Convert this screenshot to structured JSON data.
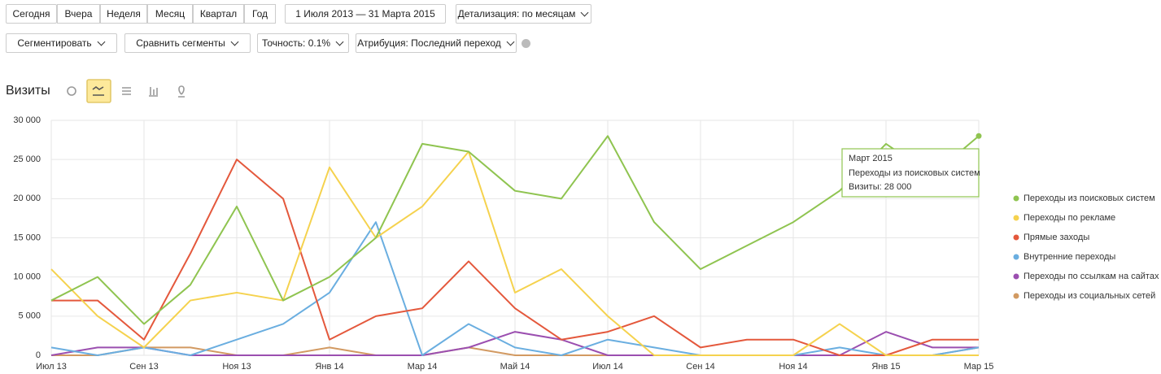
{
  "toolbar": {
    "periods": [
      "Сегодня",
      "Вчера",
      "Неделя",
      "Месяц",
      "Квартал",
      "Год"
    ],
    "date_range": "1 Июля 2013 — 31 Марта 2015",
    "detail": "Детализация: по месяцам",
    "segment": "Сегментировать",
    "compare": "Сравнить сегменты",
    "accuracy": "Точность: 0.1%",
    "attribution": "Атрибуция: Последний переход"
  },
  "tooltip": {
    "title": "Март 2015",
    "value_text": "Визиты: 28 000"
  },
  "chart_data": {
    "type": "line",
    "title": "Визиты",
    "categories": [
      "Июл 13",
      null,
      "Сен 13",
      null,
      "Ноя 13",
      null,
      "Янв 14",
      null,
      "Мар 14",
      null,
      "Май 14",
      null,
      "Июл 14",
      null,
      "Сен 14",
      null,
      "Ноя 14",
      null,
      "Янв 15",
      null,
      "Мар 15"
    ],
    "ylim": [
      0,
      30000
    ],
    "yticks": [
      0,
      {
        "value": 5000,
        "label": "5 000"
      },
      {
        "value": 10000,
        "label": "10 000"
      },
      {
        "value": 15000,
        "label": "15 000"
      },
      {
        "value": 20000,
        "label": "20 000"
      },
      {
        "value": 25000,
        "label": "25 000"
      },
      {
        "value": 30000,
        "label": "30 000"
      }
    ],
    "grid": true,
    "legend": "right",
    "series": [
      {
        "name": "Переходы из поисковых систем",
        "color": "#8fc450",
        "values": [
          7000,
          10000,
          4000,
          9000,
          19000,
          7000,
          10000,
          15000,
          27000,
          26000,
          21000,
          20000,
          28000,
          17000,
          11000,
          14000,
          17000,
          21000,
          27000,
          23000,
          28000
        ]
      },
      {
        "name": "Переходы по рекламе",
        "color": "#f5d24e",
        "values": [
          11000,
          5000,
          1000,
          7000,
          8000,
          7000,
          24000,
          15000,
          19000,
          26000,
          8000,
          11000,
          5000,
          0,
          0,
          0,
          0,
          4000,
          0,
          0,
          0
        ]
      },
      {
        "name": "Прямые заходы",
        "color": "#e4583c",
        "values": [
          7000,
          7000,
          2000,
          13000,
          25000,
          20000,
          2000,
          5000,
          6000,
          12000,
          6000,
          2000,
          3000,
          5000,
          1000,
          2000,
          2000,
          0,
          0,
          2000,
          2000
        ]
      },
      {
        "name": "Внутренние переходы",
        "color": "#6aaee0",
        "values": [
          1000,
          0,
          1000,
          0,
          2000,
          4000,
          8000,
          17000,
          0,
          4000,
          1000,
          0,
          2000,
          1000,
          0,
          0,
          0,
          1000,
          0,
          0,
          1000
        ]
      },
      {
        "name": "Переходы по ссылкам на сайтах",
        "color": "#9b4fb0",
        "values": [
          0,
          1000,
          1000,
          0,
          0,
          0,
          0,
          0,
          0,
          1000,
          3000,
          2000,
          0,
          0,
          0,
          0,
          0,
          0,
          3000,
          1000,
          1000
        ]
      },
      {
        "name": "Переходы из социальных сетей",
        "color": "#d29a62",
        "values": [
          0,
          0,
          1000,
          1000,
          0,
          0,
          1000,
          0,
          0,
          1000,
          0,
          0,
          0,
          0,
          0,
          0,
          0,
          0,
          0,
          0,
          1000
        ]
      }
    ]
  }
}
